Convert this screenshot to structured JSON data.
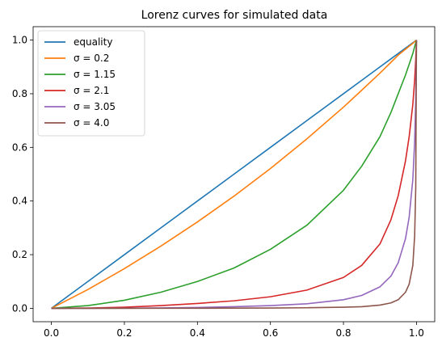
{
  "chart_data": {
    "type": "line",
    "title": "Lorenz curves for simulated data",
    "xlabel": "",
    "ylabel": "",
    "xlim": [
      -0.05,
      1.05
    ],
    "ylim": [
      -0.05,
      1.05
    ],
    "x_ticks": [
      "0.0",
      "0.2",
      "0.4",
      "0.6",
      "0.8",
      "1.0"
    ],
    "y_ticks": [
      "0.0",
      "0.2",
      "0.4",
      "0.6",
      "0.8",
      "1.0"
    ],
    "grid": false,
    "legend_position": "upper-left",
    "x": [
      0,
      0.1,
      0.2,
      0.3,
      0.4,
      0.5,
      0.6,
      0.7,
      0.8,
      0.85,
      0.9,
      0.93,
      0.95,
      0.97,
      0.98,
      0.99,
      0.995,
      0.998,
      1.0
    ],
    "series": [
      {
        "name": "equality",
        "color": "#1f77b4",
        "values": [
          0,
          0.1,
          0.2,
          0.3,
          0.4,
          0.5,
          0.6,
          0.7,
          0.8,
          0.85,
          0.9,
          0.93,
          0.95,
          0.97,
          0.98,
          0.99,
          0.995,
          0.998,
          1.0
        ]
      },
      {
        "name": "σ = 0.2",
        "color": "#ff7f0e",
        "values": [
          0,
          0.07,
          0.148,
          0.232,
          0.322,
          0.418,
          0.521,
          0.632,
          0.75,
          0.813,
          0.877,
          0.917,
          0.944,
          0.966,
          0.977,
          0.988,
          0.994,
          0.997,
          1.0
        ]
      },
      {
        "name": "σ = 1.15",
        "color": "#2ca02c",
        "values": [
          0,
          0.01,
          0.03,
          0.06,
          0.1,
          0.15,
          0.22,
          0.31,
          0.44,
          0.53,
          0.64,
          0.73,
          0.8,
          0.87,
          0.91,
          0.95,
          0.975,
          0.99,
          1.0
        ]
      },
      {
        "name": "σ = 2.1",
        "color": "#d62728",
        "values": [
          0,
          0.001,
          0.004,
          0.01,
          0.018,
          0.028,
          0.043,
          0.068,
          0.115,
          0.16,
          0.24,
          0.33,
          0.42,
          0.55,
          0.64,
          0.76,
          0.85,
          0.93,
          1.0
        ]
      },
      {
        "name": "σ = 3.05",
        "color": "#9467bd",
        "values": [
          0,
          0,
          0.0005,
          0.0015,
          0.003,
          0.006,
          0.01,
          0.017,
          0.032,
          0.048,
          0.08,
          0.12,
          0.17,
          0.26,
          0.34,
          0.48,
          0.62,
          0.78,
          1.0
        ]
      },
      {
        "name": "σ = 4.0",
        "color": "#8c564b",
        "values": [
          0,
          0,
          0,
          0.0001,
          0.0003,
          0.0006,
          0.001,
          0.002,
          0.004,
          0.006,
          0.012,
          0.02,
          0.032,
          0.06,
          0.09,
          0.16,
          0.27,
          0.45,
          1.0
        ]
      }
    ]
  }
}
